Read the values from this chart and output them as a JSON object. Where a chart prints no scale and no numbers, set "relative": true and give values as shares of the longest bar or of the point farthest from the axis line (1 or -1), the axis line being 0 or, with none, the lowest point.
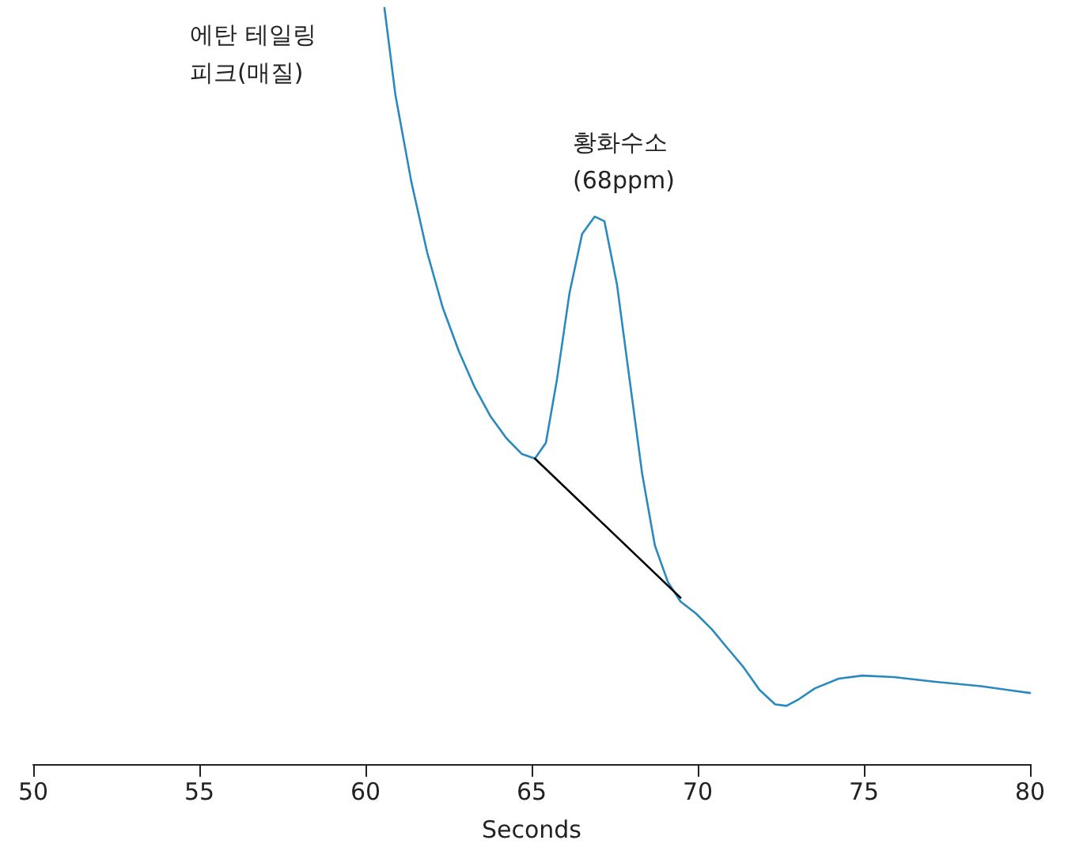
{
  "chart_data": {
    "type": "line",
    "relative": true,
    "xlabel": "Seconds",
    "xlim": [
      50,
      80
    ],
    "xticks": [
      50,
      55,
      60,
      65,
      70,
      75,
      80
    ],
    "grid": false,
    "marker": "none",
    "line_style": "solid",
    "x": [
      60.57,
      60.9,
      61.38,
      61.86,
      62.33,
      62.81,
      63.29,
      63.76,
      64.24,
      64.71,
      65.1,
      65.43,
      65.76,
      66.14,
      66.52,
      66.9,
      67.19,
      67.57,
      67.95,
      68.33,
      68.71,
      69.1,
      69.48,
      69.95,
      70.43,
      70.9,
      71.38,
      71.86,
      72.33,
      72.67,
      73.05,
      73.52,
      74.24,
      74.95,
      75.9,
      77.1,
      78.52,
      80
    ],
    "series": [
      {
        "color": "#2a8abf",
        "values": [
          1.0,
          0.885,
          0.77,
          0.676,
          0.603,
          0.546,
          0.498,
          0.46,
          0.431,
          0.41,
          0.404,
          0.425,
          0.508,
          0.623,
          0.701,
          0.724,
          0.718,
          0.634,
          0.508,
          0.383,
          0.289,
          0.241,
          0.215,
          0.199,
          0.178,
          0.153,
          0.128,
          0.098,
          0.079,
          0.077,
          0.086,
          0.1,
          0.113,
          0.117,
          0.115,
          0.109,
          0.103,
          0.094
        ]
      },
      {
        "type": "line",
        "color": "#000000",
        "x": [
          65.1,
          69.48
        ],
        "values": [
          0.404,
          0.22
        ]
      }
    ],
    "annotations": [
      "에탄 테일링\n피크(매질)",
      "황화수소\n(68ppm)"
    ]
  }
}
